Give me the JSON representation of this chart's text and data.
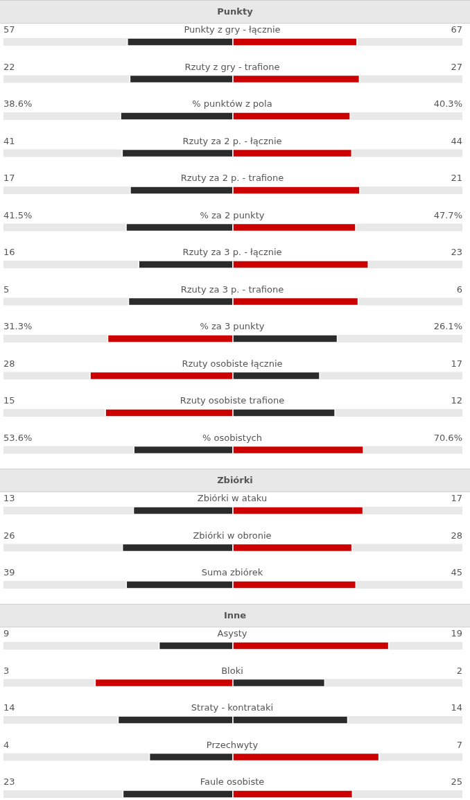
{
  "chart_data": [
    {
      "type": "other",
      "title": "Punkty",
      "categories": [
        "Punkty z gry - łącznie",
        "Rzuty z gry - trafione",
        "% punktów z pola",
        "Rzuty za 2 p. - łącznie",
        "Rzuty za 2 p. - trafione",
        "% za 2 punkty",
        "Rzuty za 3 p. - łącznie",
        "Rzuty za 3 p. - trafione",
        "% za 3 punkty",
        "Rzuty osobiste łącznie",
        "Rzuty osobiste trafione",
        "% osobistych"
      ],
      "series": [
        {
          "values": [
            57,
            22,
            38.6,
            41,
            17,
            41.5,
            16,
            5,
            31.3,
            28,
            15,
            53.6
          ],
          "value_labels": [
            "57",
            "22",
            "38.6%",
            "41",
            "17",
            "41.5%",
            "16",
            "5",
            "31.3%",
            "28",
            "15",
            "53.6%"
          ],
          "colors": [
            "#2b2b2b",
            "#2b2b2b",
            "#2b2b2b",
            "#2b2b2b",
            "#2b2b2b",
            "#2b2b2b",
            "#2b2b2b",
            "#2b2b2b",
            "#cc0000",
            "#cc0000",
            "#cc0000",
            "#2b2b2b"
          ]
        },
        {
          "values": [
            67,
            27,
            40.3,
            44,
            21,
            47.7,
            23,
            6,
            26.1,
            17,
            12,
            70.6
          ],
          "value_labels": [
            "67",
            "27",
            "40.3%",
            "44",
            "21",
            "47.7%",
            "23",
            "6",
            "26.1%",
            "17",
            "12",
            "70.6%"
          ],
          "colors": [
            "#cc0000",
            "#cc0000",
            "#cc0000",
            "#cc0000",
            "#cc0000",
            "#cc0000",
            "#cc0000",
            "#cc0000",
            "#2b2b2b",
            "#2b2b2b",
            "#2b2b2b",
            "#cc0000"
          ]
        }
      ]
    },
    {
      "type": "other",
      "title": "Zbiórki",
      "categories": [
        "Zbiórki w ataku",
        "Zbiórki w obronie",
        "Suma zbiórek"
      ],
      "series": [
        {
          "values": [
            13,
            26,
            39
          ],
          "value_labels": [
            "13",
            "26",
            "39"
          ],
          "colors": [
            "#2b2b2b",
            "#2b2b2b",
            "#2b2b2b"
          ]
        },
        {
          "values": [
            17,
            28,
            45
          ],
          "value_labels": [
            "17",
            "28",
            "45"
          ],
          "colors": [
            "#cc0000",
            "#cc0000",
            "#cc0000"
          ]
        }
      ]
    },
    {
      "type": "other",
      "title": "Inne",
      "categories": [
        "Asysty",
        "Bloki",
        "Straty - kontrataki",
        "Przechwyty",
        "Faule osobiste"
      ],
      "series": [
        {
          "values": [
            9,
            3,
            14,
            4,
            23
          ],
          "value_labels": [
            "9",
            "3",
            "14",
            "4",
            "23"
          ],
          "colors": [
            "#2b2b2b",
            "#cc0000",
            "#2b2b2b",
            "#2b2b2b",
            "#2b2b2b"
          ]
        },
        {
          "values": [
            19,
            2,
            14,
            7,
            25
          ],
          "value_labels": [
            "19",
            "2",
            "14",
            "7",
            "25"
          ],
          "colors": [
            "#cc0000",
            "#2b2b2b",
            "#2b2b2b",
            "#cc0000",
            "#cc0000"
          ]
        }
      ]
    }
  ]
}
